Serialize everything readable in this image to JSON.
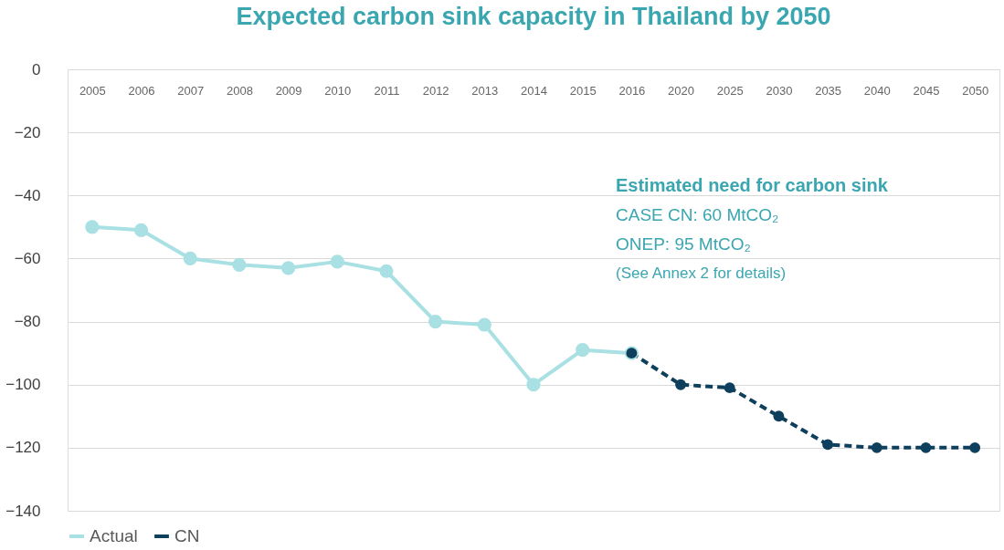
{
  "chart_data": {
    "type": "line",
    "title": "Expected carbon sink capacity in Thailand by 2050",
    "categories": [
      "2005",
      "2006",
      "2007",
      "2008",
      "2009",
      "2010",
      "2011",
      "2012",
      "2013",
      "2014",
      "2015",
      "2016",
      "2020",
      "2025",
      "2030",
      "2035",
      "2040",
      "2045",
      "2050"
    ],
    "series": [
      {
        "name": "Actual",
        "color": "#a8e0e3",
        "line_style": "solid",
        "values": [
          -50,
          -51,
          -60,
          -62,
          -63,
          -61,
          -64,
          -80,
          -81,
          -100,
          -89,
          -90,
          null,
          null,
          null,
          null,
          null,
          null,
          null
        ]
      },
      {
        "name": "CN",
        "color": "#0e3f5c",
        "line_style": "dashed",
        "values": [
          null,
          null,
          null,
          null,
          null,
          null,
          null,
          null,
          null,
          null,
          null,
          -90,
          -100,
          -101,
          -110,
          -119,
          -120,
          -120,
          -120
        ]
      }
    ],
    "ylim": [
      -140,
      0
    ],
    "yticks": [
      0,
      -20,
      -40,
      -60,
      -80,
      -100,
      -120,
      -140
    ],
    "grid": "y",
    "legend": "bottom",
    "marker": "circle",
    "annotations": [
      "Estimated need for carbon sink",
      "CASE CN: 60 MtCO₂",
      "ONEP: 95 MtCO₂",
      "(See Annex 2 for details)"
    ]
  }
}
